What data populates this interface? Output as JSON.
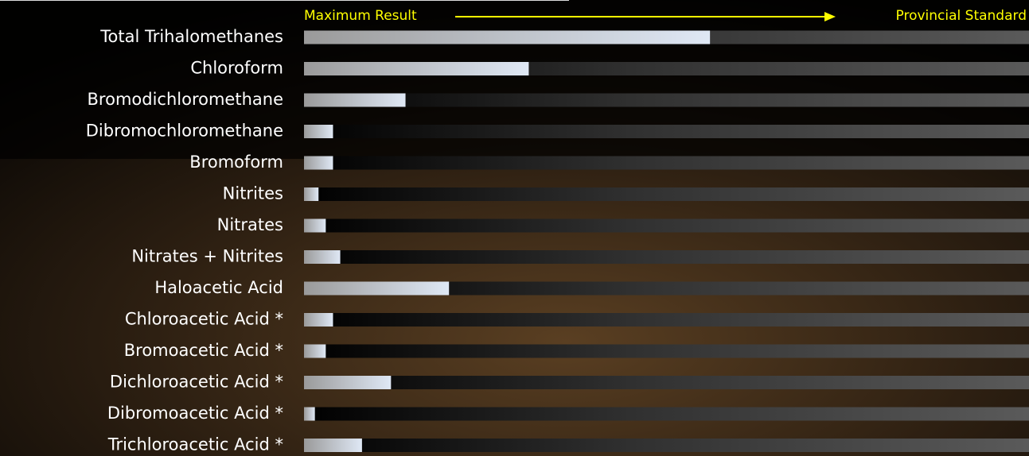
{
  "chart_data": {
    "type": "bar",
    "orientation": "horizontal",
    "annotations": [
      "Maximum Result",
      "Provincial Standard"
    ],
    "annotation_color": "#ffff00",
    "categories": [
      "Total Trihalomethanes",
      "Chloroform",
      "Bromodichloromethane",
      "Dibromochloromethane",
      "Bromoform",
      "Nitrites",
      "Nitrates",
      "Nitrates + Nitrites",
      "Haloacetic Acid",
      "Chloroacetic Acid *",
      "Bromoacetic Acid *",
      "Dichloroacetic Acid *",
      "Dibromoacetic Acid *",
      "Trichloroacetic Acid *"
    ],
    "values": [
      56,
      31,
      14,
      4,
      4,
      2,
      3,
      5,
      20,
      4,
      3,
      12,
      1.5,
      8
    ],
    "color": "#dfe8f5",
    "xlim": [
      0,
      100
    ]
  }
}
